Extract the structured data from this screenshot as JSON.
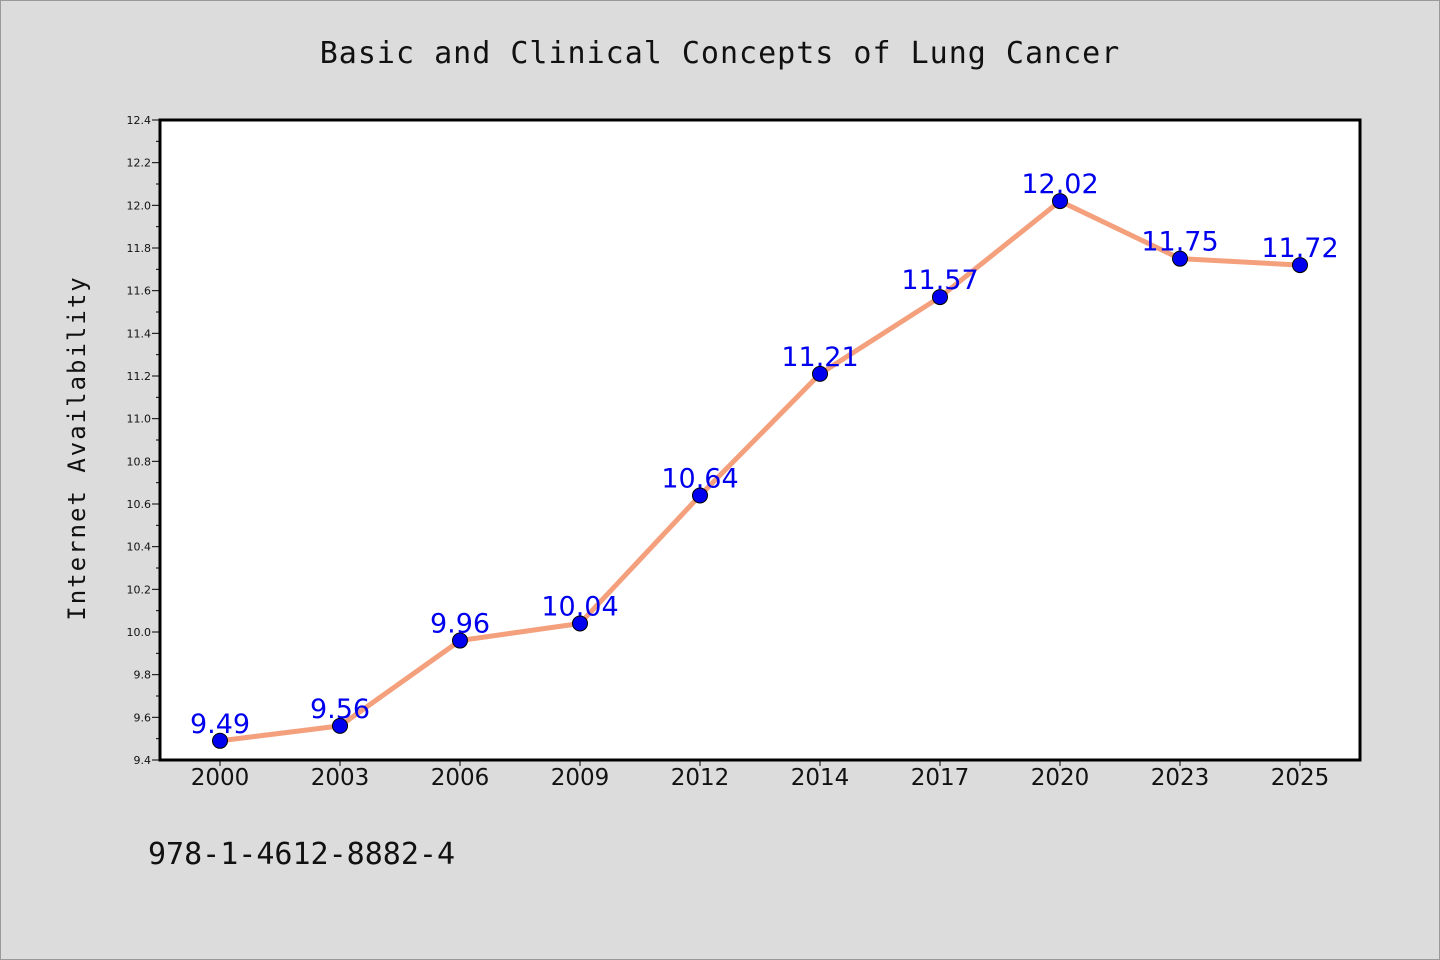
{
  "chart_data": {
    "type": "line",
    "title": "Basic and Clinical Concepts of Lung Cancer",
    "xlabel": "",
    "ylabel": "Internet Availability",
    "categories": [
      "2000",
      "2003",
      "2006",
      "2009",
      "2012",
      "2014",
      "2017",
      "2020",
      "2023",
      "2025"
    ],
    "series": [
      {
        "values": [
          9.49,
          9.56,
          9.96,
          10.04,
          10.64,
          11.21,
          11.57,
          12.02,
          11.75,
          11.72
        ],
        "labels": [
          "9.49",
          "9.56",
          "9.96",
          "10.04",
          "10.64",
          "11.21",
          "11.57",
          "12.02",
          "11.75",
          "11.72"
        ],
        "line_color": "#f4a07c",
        "marker_color": "#0000ee",
        "label_color": "#0000ee"
      }
    ],
    "ylim": [
      9.4,
      12.4
    ],
    "yticks": [
      "9.4",
      "9.6",
      "9.8",
      "10.0",
      "10.2",
      "10.4",
      "10.6",
      "10.8",
      "11.0",
      "11.2",
      "11.4",
      "11.6",
      "11.8",
      "12.0",
      "12.2",
      "12.4"
    ],
    "grid": false,
    "legend": "none"
  },
  "footer_text": "978-1-4612-8882-4",
  "colors": {
    "background": "#dcdcdc",
    "plot_background": "#ffffff",
    "axis": "#000000"
  }
}
